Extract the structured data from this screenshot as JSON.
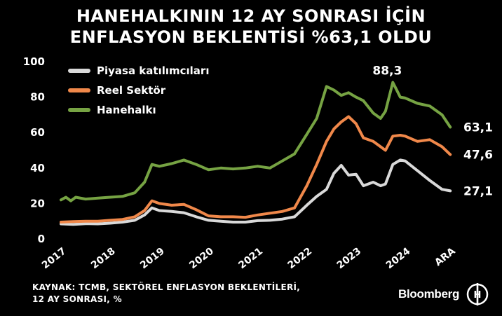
{
  "title": {
    "line1": "HANEHALKININ 12 AY SONRASI İÇİN",
    "line2": "ENFLASYON BEKLENTİSİ %63,1 OLDU"
  },
  "source": {
    "line1": "KAYNAK: TCMB, SEKTÖREL ENFLASYON BEKLENTİLERİ,",
    "line2": "12 AY SONRASI, %"
  },
  "brand": {
    "text": "Bloomberg",
    "logo_letter": "H"
  },
  "colors": {
    "background": "#000000",
    "piyasa": "#d9d9d9",
    "reel": "#f0884a",
    "hanehalki": "#76a343"
  },
  "chart_data": {
    "type": "line",
    "title": "HANEHALKININ 12 AY SONRASI İÇİN ENFLASYON BEKLENTİSİ %63,1 OLDU",
    "xlabel": "",
    "ylabel": "",
    "ylim": [
      0,
      100
    ],
    "yticks": [
      "0",
      "20",
      "40",
      "60",
      "80",
      "100"
    ],
    "grid": false,
    "legend_position": "top-left",
    "x_tick_labels": [
      "2017",
      "2018",
      "2019",
      "2020",
      "2021",
      "2022",
      "2023",
      "2024",
      "ARA"
    ],
    "x_tick_positions": [
      2017.0,
      2018.0,
      2019.0,
      2020.0,
      2021.0,
      2022.0,
      2023.0,
      2024.0,
      2024.917
    ],
    "xlim": [
      2016.9,
      2025.0
    ],
    "annotations": [
      {
        "text": "88,3",
        "x": 2023.75,
        "y": 88.3
      }
    ],
    "end_labels": [
      "63,1",
      "47,6",
      "27,1"
    ],
    "series": [
      {
        "name": "Piyasa katılımcıları",
        "color_key": "piyasa",
        "points": [
          [
            2017.0,
            8.5
          ],
          [
            2017.25,
            8.2
          ],
          [
            2017.5,
            8.6
          ],
          [
            2017.75,
            8.5
          ],
          [
            2018.0,
            8.9
          ],
          [
            2018.25,
            9.5
          ],
          [
            2018.5,
            10.5
          ],
          [
            2018.7,
            13.5
          ],
          [
            2018.85,
            17.5
          ],
          [
            2019.0,
            16.0
          ],
          [
            2019.25,
            15.5
          ],
          [
            2019.5,
            14.8
          ],
          [
            2019.75,
            12.5
          ],
          [
            2020.0,
            10.5
          ],
          [
            2020.25,
            10.0
          ],
          [
            2020.5,
            9.5
          ],
          [
            2020.75,
            9.5
          ],
          [
            2021.0,
            10.3
          ],
          [
            2021.25,
            10.5
          ],
          [
            2021.5,
            11.2
          ],
          [
            2021.75,
            12.5
          ],
          [
            2022.0,
            19.0
          ],
          [
            2022.2,
            24.0
          ],
          [
            2022.4,
            28.0
          ],
          [
            2022.55,
            37.0
          ],
          [
            2022.7,
            41.5
          ],
          [
            2022.85,
            36.0
          ],
          [
            2023.0,
            36.5
          ],
          [
            2023.15,
            30.0
          ],
          [
            2023.35,
            32.0
          ],
          [
            2023.5,
            30.0
          ],
          [
            2023.6,
            31.0
          ],
          [
            2023.75,
            42.0
          ],
          [
            2023.9,
            44.5
          ],
          [
            2024.0,
            44.0
          ],
          [
            2024.25,
            38.5
          ],
          [
            2024.5,
            33.0
          ],
          [
            2024.75,
            28.0
          ],
          [
            2024.917,
            27.1
          ]
        ]
      },
      {
        "name": "Reel Sektör",
        "color_key": "reel",
        "points": [
          [
            2017.0,
            9.5
          ],
          [
            2017.25,
            9.8
          ],
          [
            2017.5,
            10.0
          ],
          [
            2017.75,
            10.0
          ],
          [
            2018.0,
            10.5
          ],
          [
            2018.25,
            11.0
          ],
          [
            2018.5,
            12.5
          ],
          [
            2018.7,
            16.0
          ],
          [
            2018.85,
            21.5
          ],
          [
            2019.0,
            20.0
          ],
          [
            2019.25,
            19.0
          ],
          [
            2019.5,
            19.5
          ],
          [
            2019.75,
            16.5
          ],
          [
            2020.0,
            13.0
          ],
          [
            2020.25,
            12.5
          ],
          [
            2020.5,
            12.5
          ],
          [
            2020.75,
            12.2
          ],
          [
            2021.0,
            13.5
          ],
          [
            2021.25,
            14.5
          ],
          [
            2021.5,
            15.5
          ],
          [
            2021.75,
            17.5
          ],
          [
            2022.0,
            30.0
          ],
          [
            2022.2,
            42.0
          ],
          [
            2022.4,
            55.0
          ],
          [
            2022.55,
            62.0
          ],
          [
            2022.7,
            66.0
          ],
          [
            2022.85,
            69.0
          ],
          [
            2023.0,
            65.0
          ],
          [
            2023.15,
            57.0
          ],
          [
            2023.35,
            55.0
          ],
          [
            2023.5,
            52.0
          ],
          [
            2023.6,
            50.0
          ],
          [
            2023.75,
            58.0
          ],
          [
            2023.9,
            58.5
          ],
          [
            2024.0,
            58.0
          ],
          [
            2024.25,
            55.0
          ],
          [
            2024.5,
            56.0
          ],
          [
            2024.75,
            52.0
          ],
          [
            2024.917,
            47.6
          ]
        ]
      },
      {
        "name": "Hanehalkı",
        "color_key": "hanehalki",
        "points": [
          [
            2017.0,
            22.0
          ],
          [
            2017.1,
            23.5
          ],
          [
            2017.2,
            21.5
          ],
          [
            2017.3,
            23.5
          ],
          [
            2017.5,
            22.5
          ],
          [
            2017.75,
            23.0
          ],
          [
            2018.0,
            23.5
          ],
          [
            2018.25,
            24.0
          ],
          [
            2018.5,
            26.0
          ],
          [
            2018.7,
            32.0
          ],
          [
            2018.85,
            42.0
          ],
          [
            2019.0,
            41.0
          ],
          [
            2019.25,
            42.5
          ],
          [
            2019.5,
            44.5
          ],
          [
            2019.75,
            42.0
          ],
          [
            2020.0,
            39.0
          ],
          [
            2020.25,
            40.0
          ],
          [
            2020.5,
            39.5
          ],
          [
            2020.75,
            40.0
          ],
          [
            2021.0,
            41.0
          ],
          [
            2021.25,
            40.0
          ],
          [
            2021.5,
            44.0
          ],
          [
            2021.75,
            48.0
          ],
          [
            2022.0,
            59.0
          ],
          [
            2022.2,
            68.0
          ],
          [
            2022.4,
            86.0
          ],
          [
            2022.55,
            84.0
          ],
          [
            2022.7,
            81.0
          ],
          [
            2022.85,
            82.5
          ],
          [
            2023.0,
            80.0
          ],
          [
            2023.15,
            78.0
          ],
          [
            2023.35,
            71.0
          ],
          [
            2023.5,
            68.0
          ],
          [
            2023.6,
            72.0
          ],
          [
            2023.75,
            88.3
          ],
          [
            2023.9,
            80.0
          ],
          [
            2024.0,
            79.5
          ],
          [
            2024.25,
            76.5
          ],
          [
            2024.5,
            75.0
          ],
          [
            2024.75,
            70.0
          ],
          [
            2024.917,
            63.1
          ]
        ]
      }
    ]
  }
}
